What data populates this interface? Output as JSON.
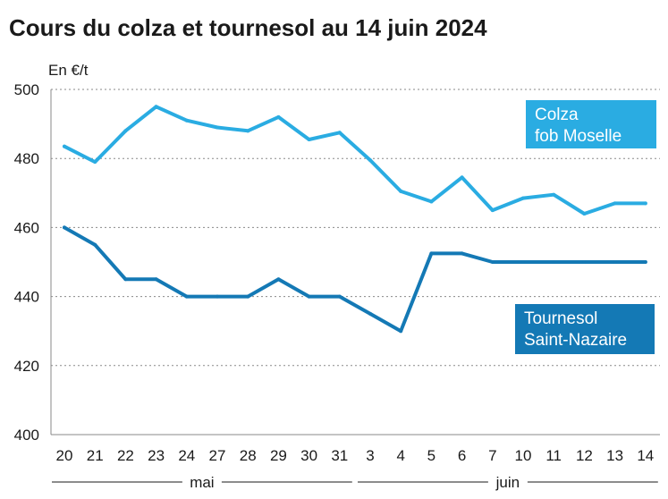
{
  "chart_data": {
    "type": "line",
    "title": "Cours du colza et tournesol au 14 juin 2024",
    "ylabel": "En €/t",
    "ylim": [
      400,
      500
    ],
    "yticks": [
      400,
      420,
      440,
      460,
      480,
      500
    ],
    "grid": "horizontal dotted",
    "categories": [
      "20",
      "21",
      "22",
      "23",
      "24",
      "27",
      "28",
      "29",
      "30",
      "31",
      "3",
      "4",
      "5",
      "6",
      "7",
      "10",
      "11",
      "12",
      "13",
      "14"
    ],
    "month_groups": [
      {
        "label": "mai",
        "from": "20",
        "to": "31"
      },
      {
        "label": "juin",
        "from": "3",
        "to": "14"
      }
    ],
    "series": [
      {
        "name": "Colza fob Moselle",
        "label_lines": [
          "Colza",
          "fob Moselle"
        ],
        "color": "#2aace2",
        "legend_placement": "top-right",
        "values": [
          483.5,
          479,
          488,
          495,
          491,
          489,
          488,
          492,
          485.5,
          487.5,
          479.5,
          470.5,
          467.5,
          474.5,
          465,
          468.5,
          469.5,
          464,
          467,
          467
        ]
      },
      {
        "name": "Tournesol Saint-Nazaire",
        "label_lines": [
          "Tournesol",
          "Saint-Nazaire"
        ],
        "color": "#1479b5",
        "legend_placement": "right",
        "values": [
          460,
          455,
          445,
          445,
          440,
          440,
          440,
          445,
          440,
          440,
          435,
          430,
          452.5,
          452.5,
          450,
          450,
          450,
          450,
          450,
          450
        ]
      }
    ]
  }
}
